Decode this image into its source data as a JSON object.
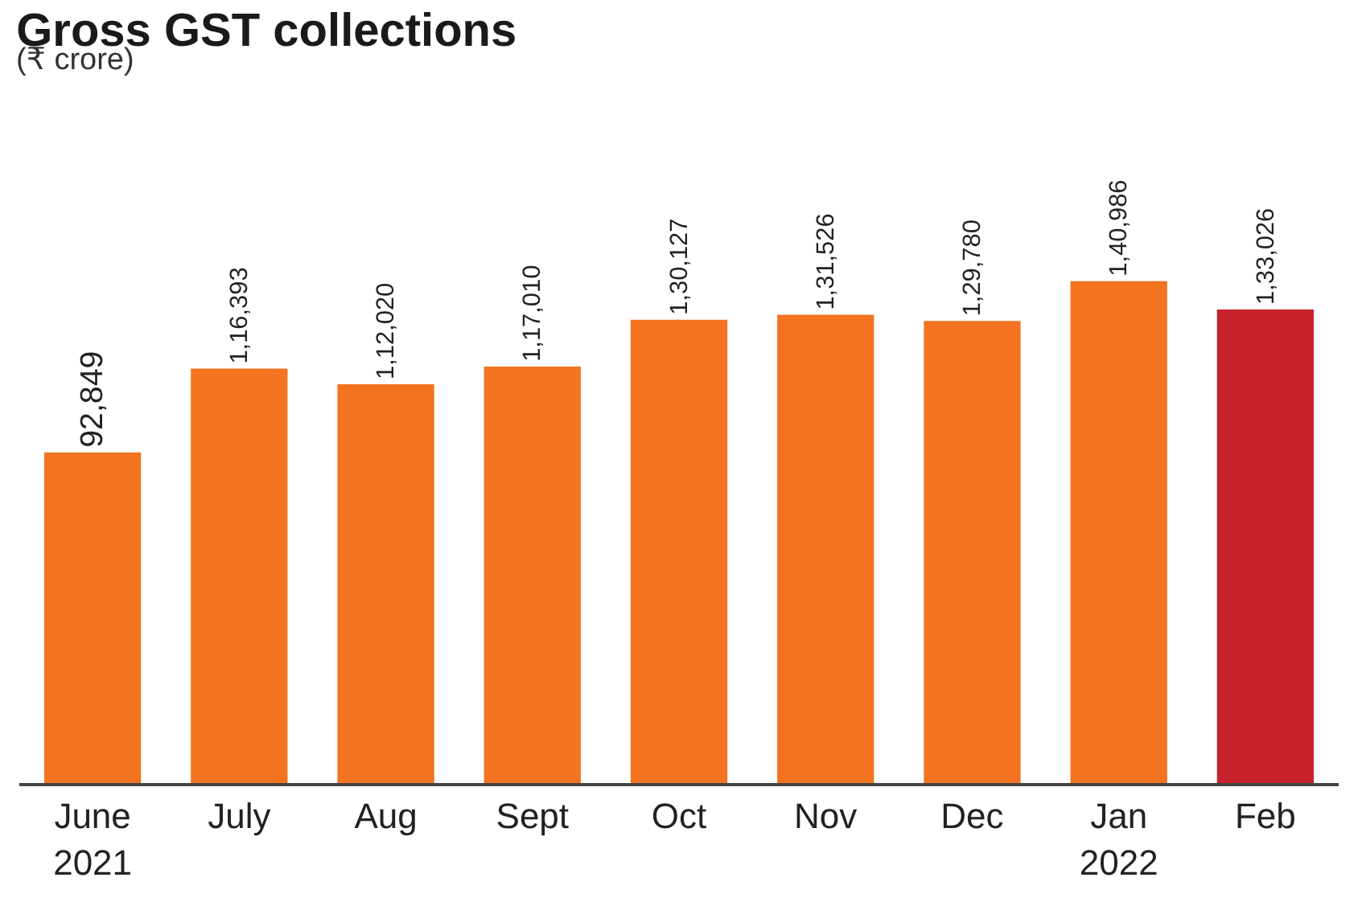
{
  "chart_data": {
    "type": "bar",
    "title": "Gross GST collections",
    "subtitle": "(₹ crore)",
    "categories": [
      "June\n2021",
      "July",
      "Aug",
      "Sept",
      "Oct",
      "Nov",
      "Dec",
      "Jan\n2022",
      "Feb"
    ],
    "values": [
      92849,
      116393,
      112020,
      117010,
      130127,
      131526,
      129780,
      140986,
      133026
    ],
    "value_labels": [
      "92,849",
      "1,16,393",
      "1,12,020",
      "1,17,010",
      "1,30,127",
      "1,31,526",
      "1,29,780",
      "1,40,986",
      "1,33,026"
    ],
    "colors": [
      "#f37321",
      "#f37321",
      "#f37321",
      "#f37321",
      "#f37321",
      "#f37321",
      "#f37321",
      "#f37321",
      "#c8232c"
    ],
    "grid": false,
    "legend": false
  }
}
